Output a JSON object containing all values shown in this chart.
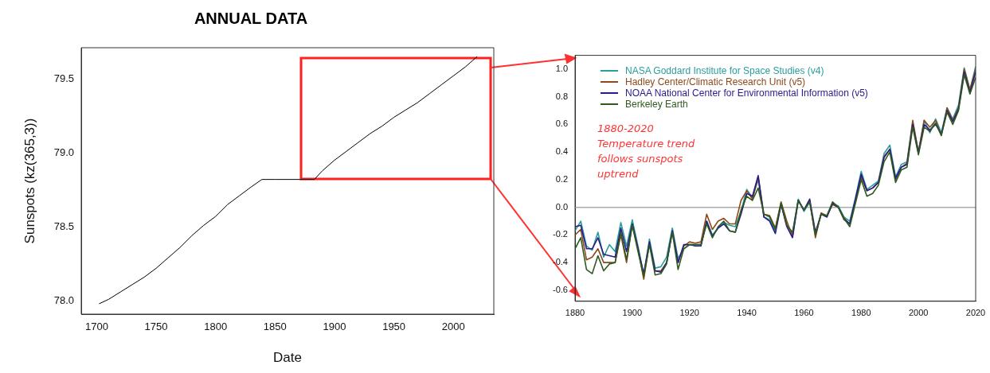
{
  "chart_data": [
    {
      "type": "line",
      "title": "ANNUAL DATA",
      "xlabel": "Date",
      "ylabel": "Sunspots (kz(365,3))",
      "xlim": [
        1687,
        2034
      ],
      "ylim": [
        77.91,
        79.71
      ],
      "xticks": [
        1700,
        1750,
        1800,
        1850,
        1900,
        1950,
        2000
      ],
      "yticks": [
        {
          "value": 78,
          "label": "78.0"
        },
        {
          "value": 78.5,
          "label": "78.5"
        },
        {
          "value": 79,
          "label": "79.0"
        },
        {
          "value": 79.5,
          "label": "79.5"
        }
      ],
      "series": [
        {
          "color": "#000000",
          "x": [
            1702,
            1710,
            1720,
            1730,
            1740,
            1750,
            1760,
            1770,
            1780,
            1790,
            1800,
            1810,
            1820,
            1830,
            1839,
            1850,
            1883,
            1890,
            1900,
            1910,
            1920,
            1930,
            1940,
            1950,
            1960,
            1970,
            1980,
            1990,
            2000,
            2010,
            2020
          ],
          "values": [
            77.98,
            78.01,
            78.06,
            78.11,
            78.16,
            78.22,
            78.29,
            78.36,
            78.44,
            78.51,
            78.57,
            78.65,
            78.71,
            78.77,
            78.82,
            78.82,
            78.82,
            78.88,
            78.95,
            79.01,
            79.07,
            79.13,
            79.18,
            79.24,
            79.29,
            79.34,
            79.4,
            79.46,
            79.52,
            79.58,
            79.65
          ]
        }
      ]
    },
    {
      "type": "line",
      "legend": "top left",
      "xlim": [
        1880,
        2020
      ],
      "ylim": [
        -0.68,
        1.1
      ],
      "xticks": [
        1880,
        1900,
        1920,
        1940,
        1960,
        1980,
        2000,
        2020
      ],
      "yticks": [
        {
          "value": -0.6,
          "label": "-0.6"
        },
        {
          "value": -0.4,
          "label": "-0.4"
        },
        {
          "value": -0.2,
          "label": "-0.2"
        },
        {
          "value": 0,
          "label": "0.0"
        },
        {
          "value": 0.2,
          "label": "0.2"
        },
        {
          "value": 0.4,
          "label": "0.4"
        },
        {
          "value": 0.6,
          "label": "0.6"
        },
        {
          "value": 0.8,
          "label": "0.8"
        },
        {
          "value": 1,
          "label": "1.0"
        }
      ],
      "ref_lines": [
        {
          "axis": "y",
          "value": 0,
          "color": "#aaaaaa"
        }
      ],
      "annotations": [
        "1880-2020\nTemperature trend\nfollows sunspots\nuptrend"
      ],
      "series": [
        {
          "name": "NASA Goddard Institute for Space Studies (v4)",
          "color": "#2a9d9d",
          "x": [
            1880,
            1882,
            1884,
            1886,
            1888,
            1890,
            1892,
            1894,
            1896,
            1898,
            1900,
            1902,
            1904,
            1906,
            1908,
            1910,
            1912,
            1914,
            1916,
            1918,
            1920,
            1922,
            1924,
            1926,
            1928,
            1930,
            1932,
            1934,
            1936,
            1938,
            1940,
            1942,
            1944,
            1946,
            1948,
            1950,
            1952,
            1954,
            1956,
            1958,
            1960,
            1962,
            1964,
            1966,
            1968,
            1970,
            1972,
            1974,
            1976,
            1978,
            1980,
            1982,
            1984,
            1986,
            1988,
            1990,
            1992,
            1994,
            1996,
            1998,
            2000,
            2002,
            2004,
            2006,
            2008,
            2010,
            2012,
            2014,
            2016,
            2018,
            2020
          ],
          "values": [
            -0.17,
            -0.1,
            -0.28,
            -0.31,
            -0.18,
            -0.36,
            -0.27,
            -0.32,
            -0.11,
            -0.28,
            -0.09,
            -0.28,
            -0.49,
            -0.23,
            -0.44,
            -0.43,
            -0.36,
            -0.15,
            -0.37,
            -0.3,
            -0.27,
            -0.27,
            -0.27,
            -0.1,
            -0.2,
            -0.15,
            -0.11,
            -0.13,
            -0.14,
            -0.03,
            0.13,
            0.07,
            0.2,
            -0.07,
            -0.09,
            -0.17,
            0.03,
            -0.13,
            -0.19,
            0.06,
            -0.03,
            0.04,
            -0.2,
            -0.05,
            -0.07,
            0.03,
            0.01,
            -0.07,
            -0.1,
            0.07,
            0.26,
            0.13,
            0.16,
            0.19,
            0.39,
            0.45,
            0.22,
            0.31,
            0.33,
            0.61,
            0.4,
            0.63,
            0.54,
            0.64,
            0.54,
            0.72,
            0.64,
            0.74,
            1.01,
            0.85,
            1.02
          ]
        },
        {
          "name": "Hadley Center/Climatic Research Unit (v5)",
          "color": "#8c4a1c",
          "x": [
            1880,
            1882,
            1884,
            1886,
            1888,
            1890,
            1892,
            1894,
            1896,
            1898,
            1900,
            1902,
            1904,
            1906,
            1908,
            1910,
            1912,
            1914,
            1916,
            1918,
            1920,
            1922,
            1924,
            1926,
            1928,
            1930,
            1932,
            1934,
            1936,
            1938,
            1940,
            1942,
            1944,
            1946,
            1948,
            1950,
            1952,
            1954,
            1956,
            1958,
            1960,
            1962,
            1964,
            1966,
            1968,
            1970,
            1972,
            1974,
            1976,
            1978,
            1980,
            1982,
            1984,
            1986,
            1988,
            1990,
            1992,
            1994,
            1996,
            1998,
            2000,
            2002,
            2004,
            2006,
            2008,
            2010,
            2012,
            2014,
            2016,
            2018,
            2020
          ],
          "values": [
            -0.2,
            -0.16,
            -0.38,
            -0.36,
            -0.3,
            -0.4,
            -0.4,
            -0.4,
            -0.2,
            -0.4,
            -0.12,
            -0.3,
            -0.52,
            -0.26,
            -0.46,
            -0.46,
            -0.4,
            -0.17,
            -0.4,
            -0.28,
            -0.25,
            -0.26,
            -0.25,
            -0.05,
            -0.16,
            -0.1,
            -0.08,
            -0.12,
            -0.12,
            0.05,
            0.12,
            0.06,
            0.22,
            -0.05,
            -0.06,
            -0.15,
            0.04,
            -0.1,
            -0.21,
            0.05,
            -0.02,
            0.05,
            -0.22,
            -0.04,
            -0.06,
            0.02,
            0,
            -0.09,
            -0.12,
            0.05,
            0.22,
            0.12,
            0.14,
            0.18,
            0.37,
            0.42,
            0.2,
            0.29,
            0.32,
            0.63,
            0.4,
            0.63,
            0.58,
            0.63,
            0.52,
            0.72,
            0.63,
            0.72,
            1,
            0.85,
            1
          ]
        },
        {
          "name": "NOAA National Center for Environmental Information (v5)",
          "color": "#2a1a8c",
          "x": [
            1880,
            1882,
            1884,
            1886,
            1888,
            1890,
            1892,
            1894,
            1896,
            1898,
            1900,
            1902,
            1904,
            1906,
            1908,
            1910,
            1912,
            1914,
            1916,
            1918,
            1920,
            1922,
            1924,
            1926,
            1928,
            1930,
            1932,
            1934,
            1936,
            1938,
            1940,
            1942,
            1944,
            1946,
            1948,
            1950,
            1952,
            1954,
            1956,
            1958,
            1960,
            1962,
            1964,
            1966,
            1968,
            1970,
            1972,
            1974,
            1976,
            1978,
            1980,
            1982,
            1984,
            1986,
            1988,
            1990,
            1992,
            1994,
            1996,
            1998,
            2000,
            2002,
            2004,
            2006,
            2008,
            2010,
            2012,
            2014,
            2016,
            2018,
            2020
          ],
          "values": [
            -0.14,
            -0.13,
            -0.3,
            -0.3,
            -0.22,
            -0.34,
            -0.35,
            -0.36,
            -0.15,
            -0.32,
            -0.12,
            -0.3,
            -0.48,
            -0.25,
            -0.46,
            -0.47,
            -0.4,
            -0.17,
            -0.4,
            -0.27,
            -0.27,
            -0.28,
            -0.28,
            -0.1,
            -0.21,
            -0.15,
            -0.12,
            -0.17,
            -0.18,
            -0.05,
            0.1,
            0.08,
            0.23,
            -0.07,
            -0.1,
            -0.19,
            0.02,
            -0.14,
            -0.22,
            0.05,
            -0.02,
            0.06,
            -0.18,
            -0.05,
            -0.07,
            0.03,
            0,
            -0.08,
            -0.12,
            0.06,
            0.24,
            0.12,
            0.14,
            0.18,
            0.36,
            0.42,
            0.21,
            0.29,
            0.31,
            0.6,
            0.39,
            0.6,
            0.56,
            0.6,
            0.53,
            0.7,
            0.62,
            0.71,
            0.98,
            0.83,
            0.98
          ]
        },
        {
          "name": "Berkeley Earth",
          "color": "#2e5a1e",
          "x": [
            1880,
            1882,
            1884,
            1886,
            1888,
            1890,
            1892,
            1894,
            1896,
            1898,
            1900,
            1902,
            1904,
            1906,
            1908,
            1910,
            1912,
            1914,
            1916,
            1918,
            1920,
            1922,
            1924,
            1926,
            1928,
            1930,
            1932,
            1934,
            1936,
            1938,
            1940,
            1942,
            1944,
            1946,
            1948,
            1950,
            1952,
            1954,
            1956,
            1958,
            1960,
            1962,
            1964,
            1966,
            1968,
            1970,
            1972,
            1974,
            1976,
            1978,
            1980,
            1982,
            1984,
            1986,
            1988,
            1990,
            1992,
            1994,
            1996,
            1998,
            2000,
            2002,
            2004,
            2006,
            2008,
            2010,
            2012,
            2014,
            2016,
            2018,
            2020
          ],
          "values": [
            -0.3,
            -0.22,
            -0.45,
            -0.48,
            -0.35,
            -0.46,
            -0.41,
            -0.4,
            -0.18,
            -0.38,
            -0.13,
            -0.32,
            -0.5,
            -0.27,
            -0.49,
            -0.48,
            -0.41,
            -0.18,
            -0.45,
            -0.3,
            -0.27,
            -0.27,
            -0.27,
            -0.12,
            -0.22,
            -0.14,
            -0.1,
            -0.17,
            -0.18,
            -0.02,
            0.08,
            0.05,
            0.14,
            -0.05,
            -0.07,
            -0.16,
            0.03,
            -0.13,
            -0.18,
            0.05,
            -0.02,
            0.04,
            -0.2,
            -0.05,
            -0.06,
            0.04,
            0,
            -0.08,
            -0.14,
            0.03,
            0.2,
            0.08,
            0.1,
            0.16,
            0.33,
            0.4,
            0.18,
            0.27,
            0.29,
            0.58,
            0.38,
            0.58,
            0.55,
            0.61,
            0.52,
            0.69,
            0.6,
            0.7,
            0.96,
            0.82,
            0.94
          ]
        }
      ]
    }
  ]
}
